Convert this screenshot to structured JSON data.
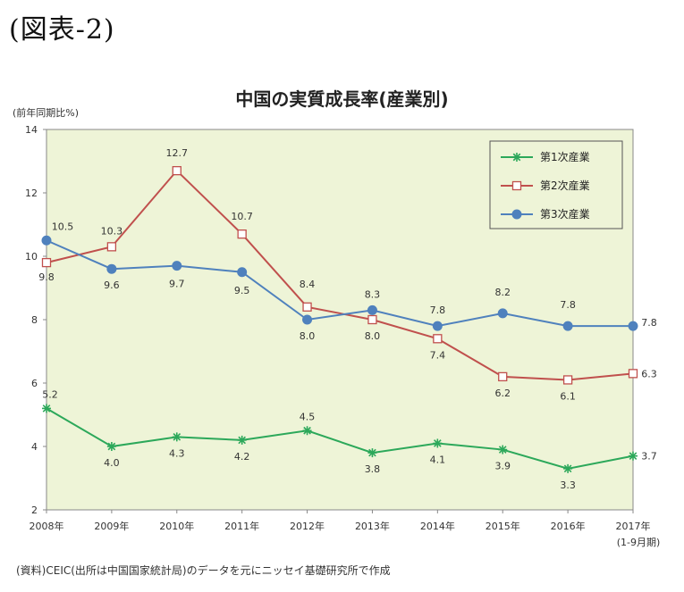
{
  "figure_label": "(図表-2)",
  "source_note": "(資料)CEIC(出所は中国国家統計局)のデータを元にニッセイ基礎研究所で作成",
  "chart_data": {
    "type": "line",
    "title": "中国の実質成長率(産業別)",
    "ylabel": "(前年同期比%)",
    "xlabel": "",
    "ylim": [
      2,
      14
    ],
    "yticks": [
      "2",
      "4",
      "6",
      "8",
      "10",
      "12",
      "14"
    ],
    "categories": [
      "2008年",
      "2009年",
      "2010年",
      "2011年",
      "2012年",
      "2013年",
      "2014年",
      "2015年",
      "2016年",
      "2017年"
    ],
    "last_category_note": "(1-9月期)",
    "grid": false,
    "legend_position": "top-right",
    "series": [
      {
        "name": "第1次産業",
        "values": [
          5.2,
          4.0,
          4.3,
          4.2,
          4.5,
          3.8,
          4.1,
          3.9,
          3.3,
          3.7
        ],
        "labels": [
          "5.2",
          "4.0",
          "4.3",
          "4.2",
          "4.5",
          "3.8",
          "4.1",
          "3.9",
          "3.3",
          "3.7"
        ],
        "color": "#2ca85a",
        "marker": "asterisk"
      },
      {
        "name": "第2次産業",
        "values": [
          9.8,
          10.3,
          12.7,
          10.7,
          8.4,
          8.0,
          7.4,
          6.2,
          6.1,
          6.3
        ],
        "labels": [
          "9.8",
          "10.3",
          "12.7",
          "10.7",
          "8.4",
          "8.0",
          "7.4",
          "6.2",
          "6.1",
          "6.3"
        ],
        "color": "#c0504d",
        "marker": "square"
      },
      {
        "name": "第3次産業",
        "values": [
          10.5,
          9.6,
          9.7,
          9.5,
          8.0,
          8.3,
          7.8,
          8.2,
          7.8,
          7.8
        ],
        "labels": [
          "10.5",
          "9.6",
          "9.7",
          "9.5",
          "8.0",
          "8.3",
          "7.8",
          "8.2",
          "7.8",
          "7.8"
        ],
        "color": "#4f81bd",
        "marker": "circle"
      }
    ],
    "colors": {
      "plot_background": "#eef4d7",
      "axis": "#888888"
    }
  }
}
